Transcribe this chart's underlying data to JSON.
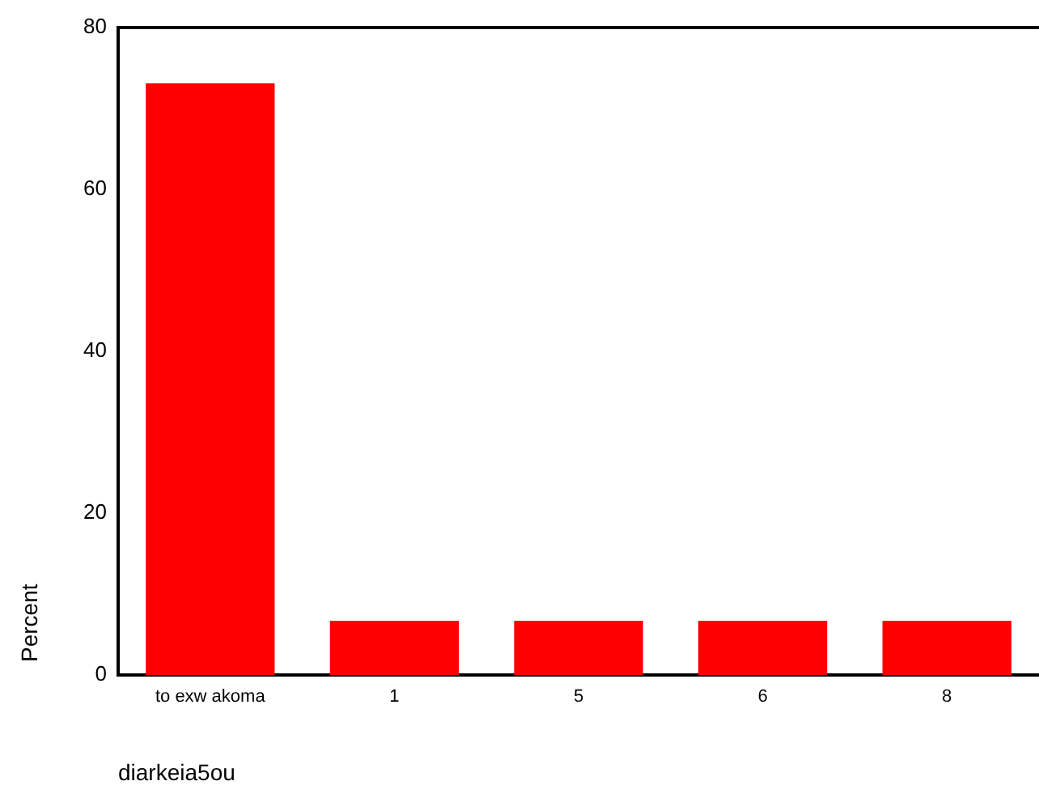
{
  "chart_data": {
    "type": "bar",
    "xlabel": "diarkeia5ou",
    "ylabel": "Percent",
    "categories": [
      "to exw akoma",
      "1",
      "5",
      "6",
      "8"
    ],
    "values": [
      73.1,
      6.7,
      6.7,
      6.7,
      6.7
    ],
    "color": "#ff0000",
    "ylim": [
      0,
      80
    ],
    "yticks": [
      0,
      20,
      40,
      60,
      80
    ],
    "grid": false
  }
}
